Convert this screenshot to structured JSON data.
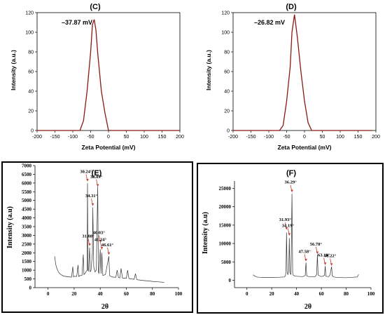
{
  "chart_data": [
    {
      "panel": "(C)",
      "type": "line",
      "xlabel": "Zeta Potential (mV)",
      "ylabel": "Intensity (a.u.)",
      "xlim": [
        -200,
        200
      ],
      "ylim": [
        0,
        120
      ],
      "xticks": [
        -200,
        -150,
        -100,
        -50,
        0,
        50,
        100,
        150,
        200
      ],
      "yticks": [
        0,
        20,
        40,
        60,
        80,
        100,
        120
      ],
      "grid": false,
      "peak_label": "–37.87 mV",
      "peak_at": [
        -40,
        113
      ],
      "line_color": "#8b1a10",
      "x": [
        -200,
        -100,
        -80,
        -70,
        -60,
        -50,
        -45,
        -40,
        -35,
        -30,
        -20,
        -10,
        0,
        10,
        200
      ],
      "y": [
        0,
        0,
        0,
        10,
        40,
        80,
        108,
        113,
        102,
        78,
        40,
        18,
        0,
        0,
        0
      ]
    },
    {
      "panel": "(D)",
      "type": "line",
      "xlabel": "Zeta Potential (mV)",
      "ylabel": "Intensity (a.u.)",
      "xlim": [
        -200,
        200
      ],
      "ylim": [
        0,
        120
      ],
      "xticks": [
        -200,
        -150,
        -100,
        -50,
        0,
        50,
        100,
        150,
        200
      ],
      "yticks": [
        0,
        20,
        40,
        60,
        80,
        100,
        120
      ],
      "grid": false,
      "peak_label": "–26.82 mV",
      "peak_at": [
        -28,
        118
      ],
      "line_color": "#8b1a10",
      "x": [
        -200,
        -70,
        -60,
        -50,
        -40,
        -35,
        -28,
        -20,
        -10,
        0,
        10,
        20,
        190
      ],
      "y": [
        0,
        0,
        5,
        30,
        65,
        100,
        118,
        95,
        60,
        30,
        8,
        0,
        0
      ]
    },
    {
      "panel": "(E)",
      "type": "line",
      "xlabel": "2θ",
      "ylabel": "Intensity (a.u)",
      "xlim": [
        -10,
        100
      ],
      "ylim": [
        0,
        7000
      ],
      "xticks": [
        0,
        20,
        40,
        60,
        80,
        100
      ],
      "yticks": [
        0,
        500,
        1000,
        1500,
        2000,
        2500,
        3000,
        3500,
        4000,
        4500,
        5000,
        5500,
        6000,
        6500,
        7000
      ],
      "grid": false,
      "line_color": "#333333",
      "annotations": [
        {
          "label": "30.24°",
          "x": 30.24,
          "y": 6100
        },
        {
          "label": "38.09°",
          "x": 38.09,
          "y": 5800
        },
        {
          "label": "34.31°",
          "x": 34.31,
          "y": 4700
        },
        {
          "label": "31.88°",
          "x": 31.88,
          "y": 2400
        },
        {
          "label": "40.03°",
          "x": 40.03,
          "y": 2600
        },
        {
          "label": "41.24°",
          "x": 41.24,
          "y": 2200
        },
        {
          "label": "46.61°",
          "x": 46.61,
          "y": 1900
        }
      ],
      "x": [
        5,
        6,
        7,
        8,
        9,
        10,
        12,
        14,
        16,
        18,
        19,
        19.5,
        20,
        22,
        23,
        23.5,
        24,
        26,
        27,
        27.5,
        28,
        29,
        30,
        30.24,
        30.6,
        31,
        31.88,
        32.3,
        33,
        34,
        34.31,
        35,
        36,
        37,
        38.09,
        38.6,
        39,
        40.03,
        40.6,
        41.24,
        42,
        44,
        46.61,
        47.2,
        48,
        50,
        52,
        53,
        54,
        55,
        56,
        57,
        58,
        60,
        61,
        62,
        64,
        66,
        67,
        68,
        70,
        72,
        75,
        78,
        80,
        85,
        89
      ],
      "y": [
        1800,
        1300,
        1050,
        900,
        800,
        740,
        660,
        640,
        620,
        600,
        1200,
        620,
        650,
        640,
        1300,
        640,
        680,
        700,
        1900,
        750,
        780,
        900,
        1000,
        6000,
        1000,
        950,
        2300,
        900,
        1000,
        2000,
        4600,
        1200,
        900,
        1000,
        5800,
        900,
        800,
        2200,
        800,
        2000,
        700,
        750,
        1800,
        700,
        650,
        600,
        600,
        1000,
        580,
        560,
        1100,
        560,
        540,
        540,
        1000,
        520,
        500,
        480,
        800,
        460,
        440,
        420,
        400,
        380,
        360,
        330,
        300
      ]
    },
    {
      "panel": "(F)",
      "type": "line",
      "xlabel": "2θ",
      "ylabel": "Intensity (a.u)",
      "xlim": [
        -10,
        100
      ],
      "ylim": [
        -2000,
        27000
      ],
      "xticks": [
        0,
        20,
        40,
        60,
        80,
        100
      ],
      "yticks": [
        0,
        5000,
        10000,
        15000,
        20000,
        25000
      ],
      "grid": false,
      "line_color": "#333333",
      "annotations": [
        {
          "label": "36.29°",
          "x": 36.29,
          "y": 24000
        },
        {
          "label": "31.93°",
          "x": 31.93,
          "y": 13800
        },
        {
          "label": "34.19°",
          "x": 34.19,
          "y": 12200
        },
        {
          "label": "47.58°",
          "x": 47.58,
          "y": 5200
        },
        {
          "label": "56.78°",
          "x": 56.78,
          "y": 7200
        },
        {
          "label": "63.10°",
          "x": 63.1,
          "y": 4200
        },
        {
          "label": "68.22°",
          "x": 68.22,
          "y": 4000
        }
      ],
      "x": [
        5,
        6,
        8,
        10,
        15,
        20,
        25,
        30,
        31,
        31.5,
        31.93,
        32.4,
        33,
        33.7,
        34.19,
        34.7,
        35.5,
        36.29,
        36.9,
        37.5,
        40,
        45,
        47,
        47.58,
        48.2,
        50,
        55,
        56.2,
        56.78,
        57.4,
        60,
        62.5,
        63.1,
        63.7,
        66,
        67,
        67.5,
        68.22,
        68.8,
        70,
        72,
        75,
        78,
        80,
        85,
        89,
        90
      ],
      "y": [
        1500,
        1200,
        900,
        800,
        750,
        750,
        800,
        900,
        1200,
        2500,
        13000,
        2500,
        1500,
        2500,
        11500,
        2000,
        1600,
        23500,
        2000,
        1300,
        1100,
        1000,
        1300,
        4800,
        1200,
        1000,
        1000,
        1600,
        7000,
        1400,
        1000,
        1300,
        3900,
        1100,
        1000,
        1500,
        2500,
        3700,
        1200,
        900,
        800,
        800,
        700,
        700,
        800,
        900,
        1600
      ]
    }
  ]
}
